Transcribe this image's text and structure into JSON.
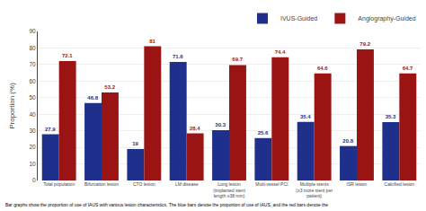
{
  "chart_data": {
    "type": "bar",
    "categories": [
      "Total population",
      "Bifurcation lesion",
      "CTO lesion",
      "LM disease",
      "Long lesion\n(implanted stent\nlength ≥38 mm)",
      "Multi-vessel PCI",
      "Multiple stents\n(≥3 more stent per\npatient)",
      "ISR lesion",
      "Calcified lesion"
    ],
    "series": [
      {
        "name": "IVUS-Guided",
        "color": "#1f2f8c",
        "values": [
          27.9,
          46.8,
          19,
          71.6,
          30.3,
          25.6,
          35.4,
          20.8,
          35.3
        ]
      },
      {
        "name": "Angiography-Guided",
        "color": "#9b1414",
        "values": [
          72.1,
          53.2,
          81,
          28.4,
          69.7,
          74.4,
          64.6,
          79.2,
          64.7
        ]
      }
    ],
    "ylabel": "Proportion (%)",
    "ylim": [
      0,
      90
    ],
    "yticks": [
      0,
      10,
      20,
      30,
      40,
      50,
      60,
      70,
      80,
      90
    ],
    "grid": true,
    "legend": "upper right",
    "data_labels": true,
    "caption": "Bar graphs show the proportion of use of IAUS with various lesion characteristics. The blue bars denote the proportion of use of IAUS, and the red bars denote the"
  }
}
